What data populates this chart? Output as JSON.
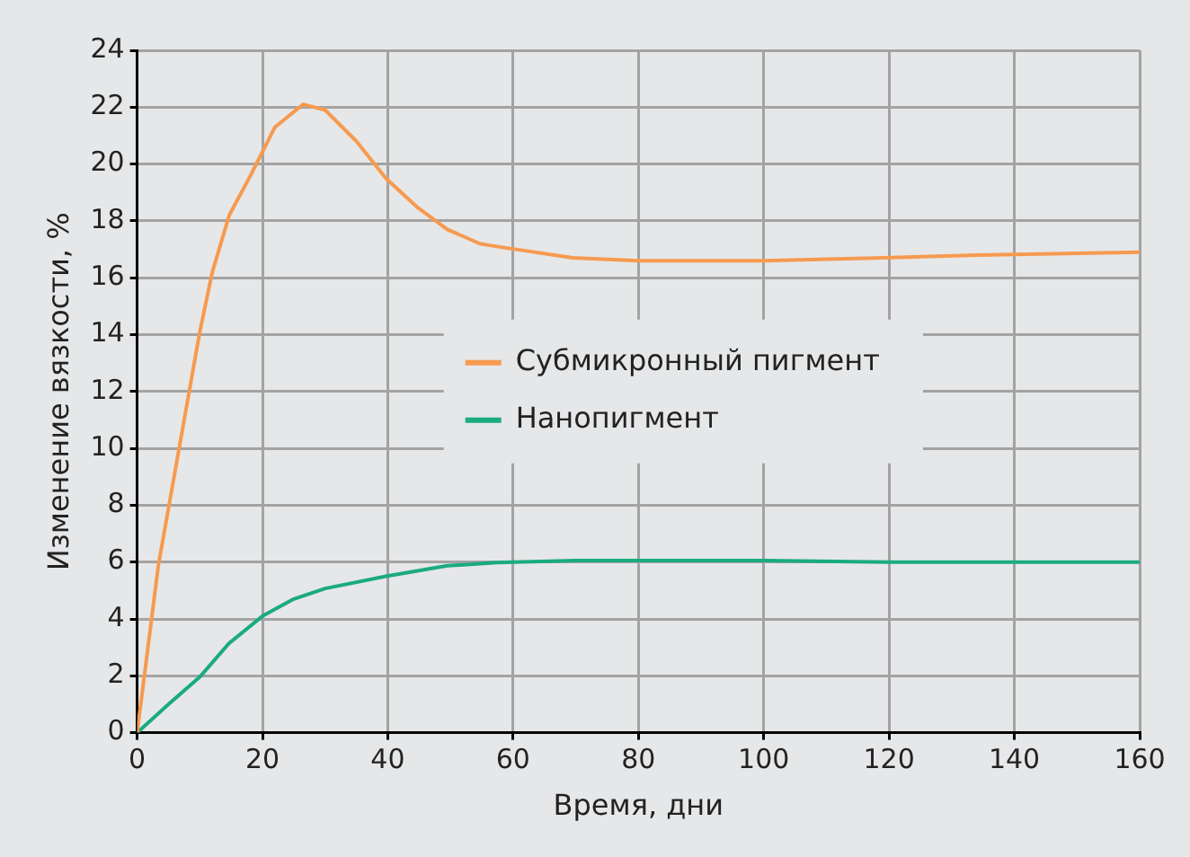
{
  "chart_data": {
    "type": "line",
    "xlabel": "Время, дни",
    "ylabel": "Изменение вязкости, %",
    "xlim": [
      0,
      160
    ],
    "xticks": [
      0,
      20,
      40,
      60,
      80,
      100,
      120,
      140,
      160
    ],
    "ylim": [
      0,
      24
    ],
    "yticks": [
      0,
      2,
      4,
      6,
      8,
      10,
      12,
      14,
      16,
      18,
      20,
      22,
      24
    ],
    "grid": true,
    "legend": "center",
    "marker": "none",
    "line_style": "solid",
    "series": [
      {
        "name": "Субмикронный пигмент",
        "color": "#f79a4f",
        "x": [
          0,
          3.4,
          10,
          12,
          14.7,
          18.1,
          22,
          26.5,
          30,
          35,
          39.7,
          44.6,
          49.5,
          54.7,
          57.4,
          69.5,
          80,
          100,
          119,
          134,
          160
        ],
        "values": [
          0,
          5.9,
          14.1,
          16.2,
          18.2,
          19.6,
          21.3,
          22.1,
          21.9,
          20.8,
          19.5,
          18.5,
          17.7,
          17.2,
          17.1,
          16.7,
          16.6,
          16.6,
          16.7,
          16.8,
          16.9
        ]
      },
      {
        "name": "Нанопигмент",
        "color": "#1aab7f",
        "x": [
          0,
          5,
          10,
          14.7,
          20,
          25,
          30,
          39.7,
          49.5,
          57.4,
          70,
          100,
          120,
          160
        ],
        "values": [
          0,
          1,
          1.96,
          3.15,
          4.1,
          4.7,
          5.07,
          5.5,
          5.87,
          5.98,
          6.05,
          6.05,
          6.0,
          6.0
        ]
      }
    ]
  }
}
